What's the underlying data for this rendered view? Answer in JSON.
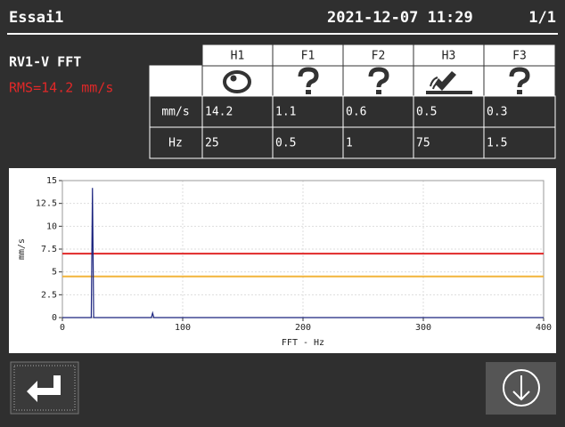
{
  "header": {
    "title": "Essai1",
    "datetime": "2021-12-07 11:29",
    "page": "1/1"
  },
  "measurement": {
    "name": "RV1-V FFT",
    "rms": "RMS=14.2 mm/s"
  },
  "table": {
    "columns": [
      "H1",
      "F1",
      "F2",
      "H3",
      "F3"
    ],
    "rows": [
      {
        "label": "mm/s",
        "values": [
          14.2,
          1.1,
          0.6,
          0.5,
          0.3
        ]
      },
      {
        "label": "Hz",
        "values": [
          25,
          0.5,
          1,
          75,
          1.5
        ]
      }
    ]
  },
  "chart_data": {
    "type": "line",
    "xlabel": "FFT - Hz",
    "ylabel": "mm/s",
    "x": [
      0,
      24,
      25,
      26,
      74,
      75,
      76,
      400
    ],
    "series": [
      {
        "color": "#1a237e",
        "values": [
          0,
          0,
          14.2,
          0,
          0,
          0.5,
          0,
          0
        ]
      }
    ],
    "thresholds": [
      {
        "value": 7,
        "color": "#e02828"
      },
      {
        "value": 4.5,
        "color": "#f2b43a"
      }
    ],
    "xlim": [
      0,
      400
    ],
    "xticks": [
      0,
      100,
      200,
      300,
      400
    ],
    "ylim": [
      0,
      15
    ],
    "yticks": [
      0,
      2.5,
      5,
      7.5,
      10,
      12.5,
      15
    ],
    "grid": true
  }
}
